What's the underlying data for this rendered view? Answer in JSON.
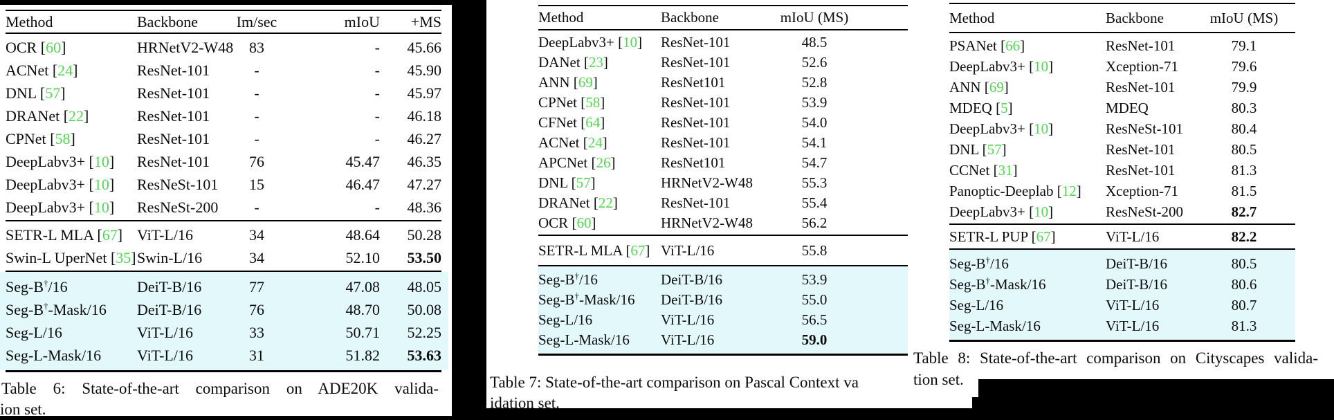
{
  "page": {
    "background": "#000000",
    "panel_background": "#ffffff",
    "highlight_color": "#e3f8fb",
    "citation_color": "#4fd94f"
  },
  "tables": [
    {
      "id": "table6",
      "columns": [
        "method",
        "backbone",
        "imsec",
        "miou",
        "ms"
      ],
      "headers": [
        "Method",
        "Backbone",
        "Im/sec",
        "mIoU",
        "+MS"
      ],
      "caption": [
        "Table 6: State-of-the-art comparison on ADE20K valida-",
        "ion set."
      ],
      "groups": [
        {
          "highlight": false,
          "rows": [
            {
              "method": "OCR",
              "ref": "60",
              "backbone": "HRNetV2-W48",
              "imsec": "83",
              "miou": "-",
              "ms": "45.66"
            },
            {
              "method": "ACNet",
              "ref": "24",
              "backbone": "ResNet-101",
              "imsec": "-",
              "miou": "-",
              "ms": "45.90"
            },
            {
              "method": "DNL",
              "ref": "57",
              "backbone": "ResNet-101",
              "imsec": "-",
              "miou": "-",
              "ms": "45.97"
            },
            {
              "method": "DRANet",
              "ref": "22",
              "backbone": "ResNet-101",
              "imsec": "-",
              "miou": "-",
              "ms": "46.18"
            },
            {
              "method": "CPNet",
              "ref": "58",
              "backbone": "ResNet-101",
              "imsec": "-",
              "miou": "-",
              "ms": "46.27"
            },
            {
              "method": "DeepLabv3+",
              "ref": "10",
              "backbone": "ResNet-101",
              "imsec": "76",
              "miou": "45.47",
              "ms": "46.35"
            },
            {
              "method": "DeepLabv3+",
              "ref": "10",
              "backbone": "ResNeSt-101",
              "imsec": "15",
              "miou": "46.47",
              "ms": "47.27"
            },
            {
              "method": "DeepLabv3+",
              "ref": "10",
              "backbone": "ResNeSt-200",
              "imsec": "-",
              "miou": "-",
              "ms": "48.36"
            }
          ]
        },
        {
          "highlight": false,
          "rows": [
            {
              "method": "SETR-L MLA",
              "ref": "67",
              "backbone": "ViT-L/16",
              "imsec": "34",
              "miou": "48.64",
              "ms": "50.28"
            },
            {
              "method": "Swin-L UperNet",
              "ref": "35",
              "backbone": "Swin-L/16",
              "imsec": "34",
              "miou": "52.10",
              "ms": "53.50",
              "bold": "ms"
            }
          ]
        },
        {
          "highlight": true,
          "rows": [
            {
              "method": "Seg-B†/16",
              "backbone": "DeiT-B/16",
              "imsec": "77",
              "miou": "47.08",
              "ms": "48.05"
            },
            {
              "method": "Seg-B†-Mask/16",
              "backbone": "DeiT-B/16",
              "imsec": "76",
              "miou": "48.70",
              "ms": "50.08"
            },
            {
              "method": "Seg-L/16",
              "backbone": "ViT-L/16",
              "imsec": "33",
              "miou": "50.71",
              "ms": "52.25"
            },
            {
              "method": "Seg-L-Mask/16",
              "backbone": "ViT-L/16",
              "imsec": "31",
              "miou": "51.82",
              "ms": "53.63",
              "bold": "ms"
            }
          ]
        }
      ]
    },
    {
      "id": "table7",
      "columns": [
        "method",
        "backbone",
        "miou"
      ],
      "headers": [
        "Method",
        "Backbone",
        "mIoU (MS)"
      ],
      "caption": [
        "Table 7: State-of-the-art comparison on Pascal Context va",
        "idation set."
      ],
      "groups": [
        {
          "highlight": false,
          "rows": [
            {
              "method": "DeepLabv3+",
              "ref": "10",
              "backbone": "ResNet-101",
              "miou": "48.5"
            },
            {
              "method": "DANet",
              "ref": "23",
              "backbone": "ResNet-101",
              "miou": "52.6"
            },
            {
              "method": "ANN",
              "ref": "69",
              "backbone": "ResNet101",
              "miou": "52.8"
            },
            {
              "method": "CPNet",
              "ref": "58",
              "backbone": "ResNet-101",
              "miou": "53.9"
            },
            {
              "method": "CFNet",
              "ref": "64",
              "backbone": "ResNet-101",
              "miou": "54.0"
            },
            {
              "method": "ACNet",
              "ref": "24",
              "backbone": "ResNet-101",
              "miou": "54.1"
            },
            {
              "method": "APCNet",
              "ref": "26",
              "backbone": "ResNet101",
              "miou": "54.7"
            },
            {
              "method": "DNL",
              "ref": "57",
              "backbone": "HRNetV2-W48",
              "miou": "55.3"
            },
            {
              "method": "DRANet",
              "ref": "22",
              "backbone": "ResNet-101",
              "miou": "55.4"
            },
            {
              "method": "OCR",
              "ref": "60",
              "backbone": "HRNetV2-W48",
              "miou": "56.2"
            }
          ]
        },
        {
          "highlight": false,
          "rows": [
            {
              "method": "SETR-L MLA",
              "ref": "67",
              "backbone": "ViT-L/16",
              "miou": "55.8"
            }
          ]
        },
        {
          "highlight": true,
          "rows": [
            {
              "method": "Seg-B†/16",
              "backbone": "DeiT-B/16",
              "miou": "53.9"
            },
            {
              "method": "Seg-B†-Mask/16",
              "backbone": "DeiT-B/16",
              "miou": "55.0"
            },
            {
              "method": "Seg-L/16",
              "backbone": "ViT-L/16",
              "miou": "56.5"
            },
            {
              "method": "Seg-L-Mask/16",
              "backbone": "ViT-L/16",
              "miou": "59.0",
              "bold": "miou"
            }
          ]
        }
      ]
    },
    {
      "id": "table8",
      "columns": [
        "method",
        "backbone",
        "miou"
      ],
      "headers": [
        "Method",
        "Backbone",
        "mIoU (MS)"
      ],
      "caption": [
        "Table 8: State-of-the-art comparison on Cityscapes valida-",
        "tion set."
      ],
      "groups": [
        {
          "highlight": false,
          "rows": [
            {
              "method": "PSANet",
              "ref": "66",
              "backbone": "ResNet-101",
              "miou": "79.1"
            },
            {
              "method": "DeepLabv3+",
              "ref": "10",
              "backbone": "Xception-71",
              "miou": "79.6"
            },
            {
              "method": "ANN",
              "ref": "69",
              "backbone": "ResNet-101",
              "miou": "79.9"
            },
            {
              "method": "MDEQ",
              "ref": "5",
              "backbone": "MDEQ",
              "miou": "80.3"
            },
            {
              "method": "DeepLabv3+",
              "ref": "10",
              "backbone": "ResNeSt-101",
              "miou": "80.4"
            },
            {
              "method": "DNL",
              "ref": "57",
              "backbone": "ResNet-101",
              "miou": "80.5"
            },
            {
              "method": "CCNet",
              "ref": "31",
              "backbone": "ResNet-101",
              "miou": "81.3"
            },
            {
              "method": "Panoptic-Deeplab",
              "ref": "12",
              "backbone": "Xception-71",
              "miou": "81.5"
            },
            {
              "method": "DeepLabv3+",
              "ref": "10",
              "backbone": "ResNeSt-200",
              "miou": "82.7",
              "bold": "miou"
            }
          ]
        },
        {
          "highlight": false,
          "rows": [
            {
              "method": "SETR-L PUP",
              "ref": "67",
              "backbone": "ViT-L/16",
              "miou": "82.2",
              "bold": "miou"
            }
          ]
        },
        {
          "highlight": true,
          "rows": [
            {
              "method": "Seg-B†/16",
              "backbone": "DeiT-B/16",
              "miou": "80.5"
            },
            {
              "method": "Seg-B†-Mask/16",
              "backbone": "DeiT-B/16",
              "miou": "80.6"
            },
            {
              "method": "Seg-L/16",
              "backbone": "ViT-L/16",
              "miou": "80.7"
            },
            {
              "method": "Seg-L-Mask/16",
              "backbone": "ViT-L/16",
              "miou": "81.3"
            }
          ]
        }
      ]
    }
  ]
}
